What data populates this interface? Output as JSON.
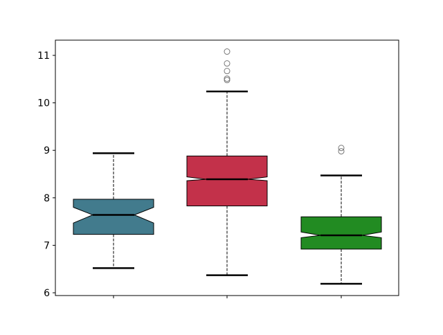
{
  "chart_data": {
    "type": "box",
    "notched": true,
    "ylim": [
      5.95,
      11.3
    ],
    "yticks": [
      "6",
      "7",
      "8",
      "9",
      "10",
      "11"
    ],
    "grid": false,
    "xticklabels": [
      "",
      "",
      ""
    ],
    "series": [
      {
        "color": "#427b8d",
        "whisker_low": 6.52,
        "q1": 7.23,
        "notch_low": 7.47,
        "median": 7.64,
        "notch_high": 7.8,
        "q3": 7.97,
        "whisker_high": 8.94,
        "outliers": []
      },
      {
        "color": "#c3314a",
        "whisker_low": 6.37,
        "q1": 7.83,
        "notch_low": 8.36,
        "median": 8.39,
        "notch_high": 8.44,
        "q3": 8.88,
        "whisker_high": 10.24,
        "outliers": [
          11.08,
          10.83,
          10.67,
          10.51,
          10.48
        ]
      },
      {
        "color": "#228b22",
        "whisker_low": 6.19,
        "q1": 6.92,
        "notch_low": 7.16,
        "median": 7.21,
        "notch_high": 7.28,
        "q3": 7.6,
        "whisker_high": 8.47,
        "outliers": [
          9.05,
          8.98
        ]
      }
    ]
  }
}
